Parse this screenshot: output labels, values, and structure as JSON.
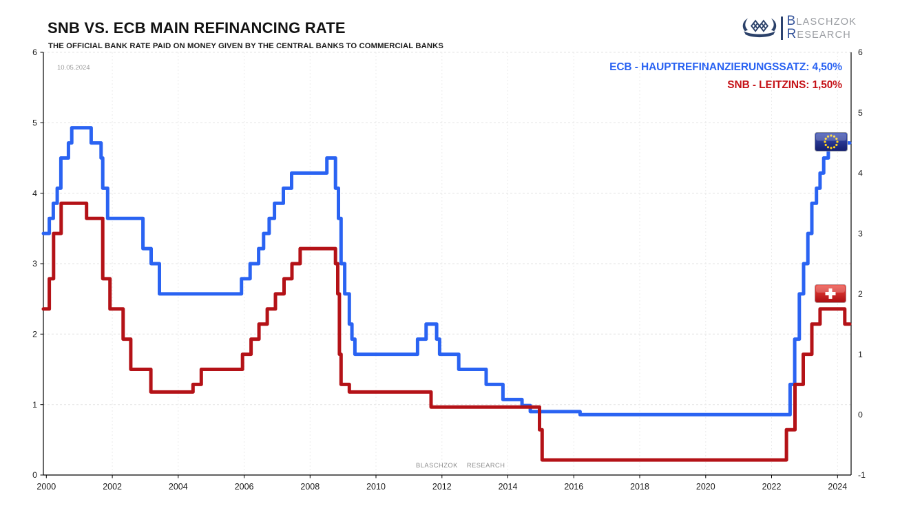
{
  "header": {
    "title": "SNB VS. ECB MAIN REFINANCING RATE",
    "subtitle": "THE OFFICIAL BANK RATE PAID ON MONEY GIVEN BY THE CENTRAL BANKS TO COMMERCIAL BANKS",
    "date_note": "10.05.2024"
  },
  "logo": {
    "line1_initial": "B",
    "line1_rest": "LASCHZOK",
    "line2_initial": "R",
    "line2_rest": "ESEARCH",
    "icon": "viking-ship-icon",
    "navy": "#2b4169",
    "initial_blue": "#34539a",
    "gray": "#9a9da2"
  },
  "legend": {
    "ecb_label": "ECB - HAUPTREFINANZIERUNGSSATZ: 4,50%",
    "snb_label": "SNB - LEITZINS: 1,50%",
    "ecb_color": "#2a63f2",
    "snb_color": "#c51217"
  },
  "watermark": {
    "word1": "BLASCHZOK",
    "word2": "RESEARCH"
  },
  "flags": [
    "eu-flag",
    "switzerland-flag"
  ],
  "chart_data": {
    "type": "line",
    "step": true,
    "title": "SNB VS. ECB MAIN REFINANCING RATE",
    "x_axis": {
      "ticks": [
        2000,
        2002,
        2004,
        2006,
        2008,
        2010,
        2012,
        2014,
        2016,
        2018,
        2020,
        2022,
        2024
      ],
      "min": 2000,
      "max": 2024.4
    },
    "left_axis": {
      "min": 0,
      "max": 6,
      "step": 1
    },
    "right_axis": {
      "min": -1,
      "max": 6,
      "step": 1
    },
    "grid": {
      "horizontal_from": "left_axis",
      "vertical": true,
      "style": "dashed"
    },
    "x_end": 2024.37,
    "series": [
      {
        "name": "ECB - Hauptrefinanzierungssatz",
        "axis": "right",
        "color": "#2a63f2",
        "latest_value": 4.5,
        "latest_label": "4,50%",
        "points": [
          [
            1999.9,
            3.0
          ],
          [
            2000.09,
            3.25
          ],
          [
            2000.21,
            3.5
          ],
          [
            2000.33,
            3.75
          ],
          [
            2000.44,
            4.25
          ],
          [
            2000.67,
            4.5
          ],
          [
            2000.77,
            4.75
          ],
          [
            2001.36,
            4.5
          ],
          [
            2001.66,
            4.25
          ],
          [
            2001.71,
            3.75
          ],
          [
            2001.86,
            3.25
          ],
          [
            2002.93,
            2.75
          ],
          [
            2003.18,
            2.5
          ],
          [
            2003.43,
            2.0
          ],
          [
            2005.92,
            2.25
          ],
          [
            2006.18,
            2.5
          ],
          [
            2006.44,
            2.75
          ],
          [
            2006.59,
            3.0
          ],
          [
            2006.76,
            3.25
          ],
          [
            2006.92,
            3.5
          ],
          [
            2007.19,
            3.75
          ],
          [
            2007.44,
            4.0
          ],
          [
            2008.51,
            4.25
          ],
          [
            2008.77,
            3.75
          ],
          [
            2008.86,
            3.25
          ],
          [
            2008.94,
            2.5
          ],
          [
            2009.05,
            2.0
          ],
          [
            2009.19,
            1.5
          ],
          [
            2009.27,
            1.25
          ],
          [
            2009.36,
            1.0
          ],
          [
            2011.26,
            1.25
          ],
          [
            2011.52,
            1.5
          ],
          [
            2011.84,
            1.25
          ],
          [
            2011.93,
            1.0
          ],
          [
            2012.51,
            0.75
          ],
          [
            2013.34,
            0.5
          ],
          [
            2013.85,
            0.25
          ],
          [
            2014.43,
            0.15
          ],
          [
            2014.68,
            0.05
          ],
          [
            2016.19,
            0.0
          ],
          [
            2022.56,
            0.5
          ],
          [
            2022.7,
            1.25
          ],
          [
            2022.84,
            2.0
          ],
          [
            2022.97,
            2.5
          ],
          [
            2023.1,
            3.0
          ],
          [
            2023.22,
            3.5
          ],
          [
            2023.36,
            3.75
          ],
          [
            2023.47,
            4.0
          ],
          [
            2023.58,
            4.25
          ],
          [
            2023.72,
            4.5
          ]
        ]
      },
      {
        "name": "SNB - Leitzins",
        "axis": "right",
        "color": "#b41217",
        "latest_value": 1.5,
        "latest_label": "1,50%",
        "points": [
          [
            1999.9,
            1.75
          ],
          [
            2000.09,
            2.25
          ],
          [
            2000.22,
            3.0
          ],
          [
            2000.45,
            3.5
          ],
          [
            2001.22,
            3.25
          ],
          [
            2001.71,
            2.25
          ],
          [
            2001.93,
            1.75
          ],
          [
            2002.33,
            1.25
          ],
          [
            2002.56,
            0.75
          ],
          [
            2003.17,
            0.375
          ],
          [
            2004.45,
            0.5
          ],
          [
            2004.7,
            0.75
          ],
          [
            2005.95,
            1.0
          ],
          [
            2006.21,
            1.25
          ],
          [
            2006.45,
            1.5
          ],
          [
            2006.7,
            1.75
          ],
          [
            2006.95,
            2.0
          ],
          [
            2007.21,
            2.25
          ],
          [
            2007.45,
            2.5
          ],
          [
            2007.7,
            2.75
          ],
          [
            2008.77,
            2.5
          ],
          [
            2008.84,
            2.0
          ],
          [
            2008.89,
            1.0
          ],
          [
            2008.94,
            0.5
          ],
          [
            2009.19,
            0.375
          ],
          [
            2011.67,
            0.125
          ],
          [
            2014.96,
            -0.25
          ],
          [
            2015.04,
            -0.75
          ],
          [
            2022.45,
            -0.25
          ],
          [
            2022.71,
            0.5
          ],
          [
            2022.96,
            1.0
          ],
          [
            2023.22,
            1.5
          ],
          [
            2023.47,
            1.75
          ],
          [
            2024.22,
            1.5
          ]
        ]
      }
    ]
  }
}
